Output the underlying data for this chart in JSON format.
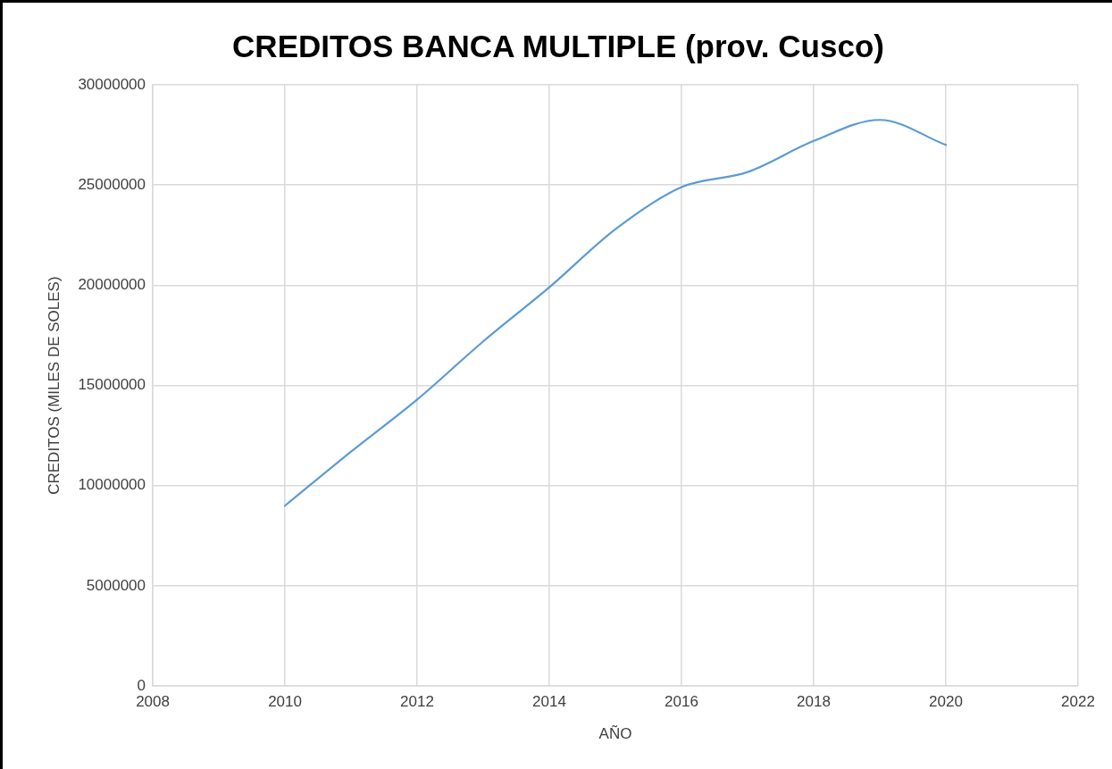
{
  "chart_data": {
    "type": "line",
    "title": "CREDITOS BANCA MULTIPLE (prov. Cusco)",
    "xlabel": "AÑO",
    "ylabel": "CREDITOS (MILES DE SOLES)",
    "x": [
      2010,
      2011,
      2012,
      2013,
      2014,
      2015,
      2016,
      2017,
      2018,
      2019,
      2020
    ],
    "series": [
      {
        "color": "#5b9bd5",
        "values": [
          9000000,
          11700000,
          14300000,
          17200000,
          19900000,
          22800000,
          24900000,
          25650000,
          27200000,
          28250000,
          27000000
        ]
      }
    ],
    "xlim": [
      2008,
      2022
    ],
    "xticks": [
      2008,
      2010,
      2012,
      2014,
      2016,
      2018,
      2020,
      2022
    ],
    "ylim": [
      0,
      30000000
    ],
    "yticks": [
      0,
      5000000,
      10000000,
      15000000,
      20000000,
      25000000,
      30000000
    ],
    "grid": true,
    "legend": false,
    "marker": "none",
    "line_style": "solid"
  }
}
